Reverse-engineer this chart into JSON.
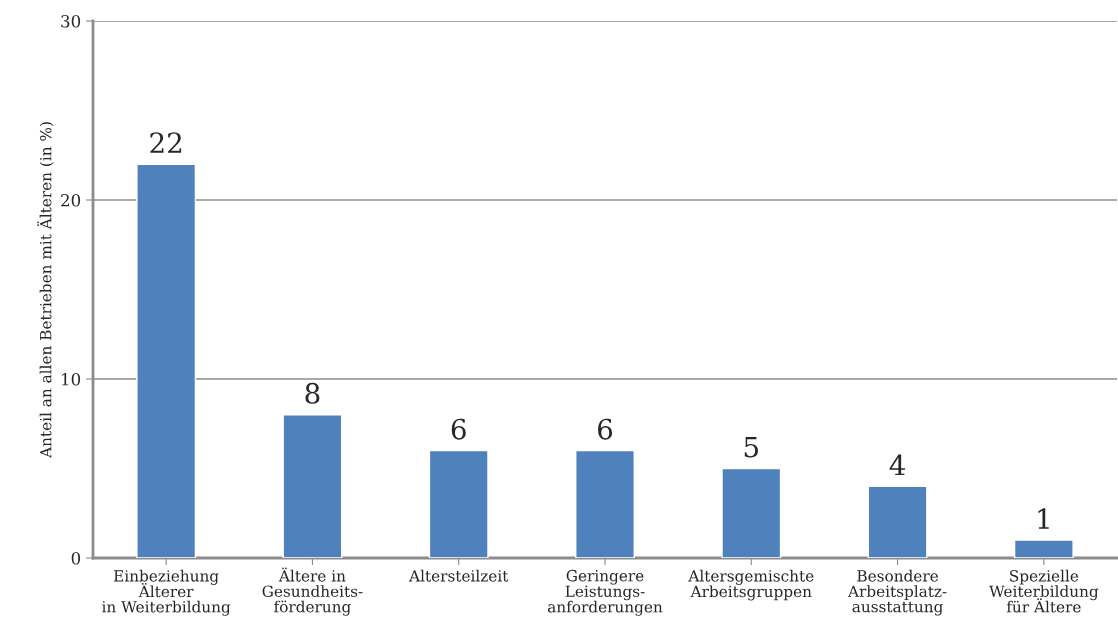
{
  "chart_data": {
    "type": "bar",
    "ylabel": "Anteil an allen Betrieben mit Älteren (in %)",
    "categories": [
      "Einbeziehung\nÄlterer\nin Weiterbildung",
      "Ältere in\nGesundheits-\nförderung",
      "Altersteilzeit",
      "Geringere\nLeistungs-\nanforderungen",
      "Altersgemischte\nArbeitsgruppen",
      "Besondere\nArbeitsplatz-\nausstattung",
      "Spezielle\nWeiterbildung\nfür Ältere"
    ],
    "values": [
      22,
      8,
      6,
      6,
      5,
      4,
      1
    ],
    "color": "#4f81bd",
    "ylim": [
      0,
      30
    ],
    "yticks": [
      0,
      10,
      20,
      30
    ],
    "grid": "y",
    "data_labels": true
  }
}
